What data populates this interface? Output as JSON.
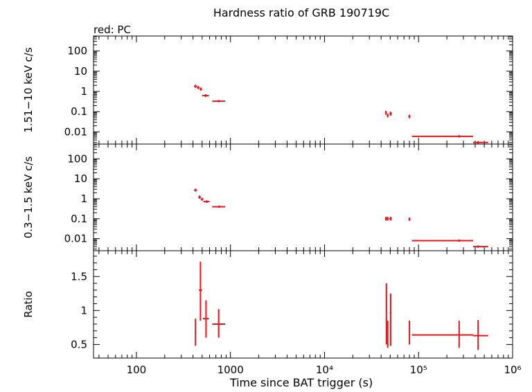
{
  "chart_data": {
    "type": "scatter",
    "title": "Hardness ratio of GRB 190719C",
    "subtitle": "red: PC",
    "xlabel": "Time since BAT trigger (s)",
    "x_scale": "log",
    "xlim": [
      35,
      1000000
    ],
    "x_ticks": [
      {
        "value": 100,
        "label": "100"
      },
      {
        "value": 1000,
        "label": "1000"
      },
      {
        "value": 10000,
        "label": "10⁴"
      },
      {
        "value": 100000,
        "label": "10⁵"
      },
      {
        "value": 1000000,
        "label": "10⁶"
      }
    ],
    "series_color": "#e8141b",
    "panels": [
      {
        "id": "hard",
        "ylabel": "1.51−10 keV c/s",
        "y_scale": "log",
        "ylim": [
          0.0025,
          550
        ],
        "y_ticks": [
          {
            "value": 100,
            "label": "100"
          },
          {
            "value": 10,
            "label": "10"
          },
          {
            "value": 1,
            "label": "1"
          },
          {
            "value": 0.1,
            "label": "0.1"
          },
          {
            "value": 0.01,
            "label": "0.01"
          }
        ],
        "points": [
          {
            "x": 425,
            "xlo": 410,
            "xhi": 440,
            "y": 1.8,
            "ylo": 1.5,
            "yhi": 2.15
          },
          {
            "x": 455,
            "xlo": 440,
            "xhi": 470,
            "y": 1.55,
            "ylo": 1.3,
            "yhi": 1.85
          },
          {
            "x": 485,
            "xlo": 470,
            "xhi": 500,
            "y": 1.3,
            "ylo": 1.1,
            "yhi": 1.55
          },
          {
            "x": 545,
            "xlo": 500,
            "xhi": 590,
            "y": 0.62,
            "ylo": 0.53,
            "yhi": 0.73
          },
          {
            "x": 750,
            "xlo": 640,
            "xhi": 880,
            "y": 0.33,
            "ylo": 0.29,
            "yhi": 0.38
          },
          {
            "x": 45000,
            "xlo": 44000,
            "xhi": 46000,
            "y": 0.09,
            "ylo": 0.07,
            "yhi": 0.11
          },
          {
            "x": 47000,
            "xlo": 46000,
            "xhi": 48000,
            "y": 0.065,
            "ylo": 0.052,
            "yhi": 0.08
          },
          {
            "x": 50500,
            "xlo": 49000,
            "xhi": 52000,
            "y": 0.08,
            "ylo": 0.063,
            "yhi": 0.1
          },
          {
            "x": 80000,
            "xlo": 78000,
            "xhi": 82000,
            "y": 0.058,
            "ylo": 0.047,
            "yhi": 0.071
          },
          {
            "x": 270000,
            "xlo": 85000,
            "xhi": 380000,
            "y": 0.006,
            "ylo": 0.0052,
            "yhi": 0.0069
          },
          {
            "x": 430000,
            "xlo": 380000,
            "xhi": 550000,
            "y": 0.003,
            "ylo": 0.0026,
            "yhi": 0.0035
          }
        ]
      },
      {
        "id": "soft",
        "ylabel": "0.3−1.5 keV c/s",
        "y_scale": "log",
        "ylim": [
          0.0025,
          550
        ],
        "y_ticks": [
          {
            "value": 100,
            "label": "100"
          },
          {
            "value": 10,
            "label": "10"
          },
          {
            "value": 1,
            "label": "1"
          },
          {
            "value": 0.1,
            "label": "0.1"
          },
          {
            "value": 0.01,
            "label": "0.01"
          }
        ],
        "points": [
          {
            "x": 425,
            "xlo": 410,
            "xhi": 440,
            "y": 2.7,
            "ylo": 2.3,
            "yhi": 3.2
          },
          {
            "x": 470,
            "xlo": 455,
            "xhi": 485,
            "y": 1.2,
            "ylo": 1.0,
            "yhi": 1.45
          },
          {
            "x": 500,
            "xlo": 485,
            "xhi": 515,
            "y": 0.95,
            "ylo": 0.8,
            "yhi": 1.12
          },
          {
            "x": 560,
            "xlo": 515,
            "xhi": 600,
            "y": 0.72,
            "ylo": 0.62,
            "yhi": 0.84
          },
          {
            "x": 760,
            "xlo": 640,
            "xhi": 880,
            "y": 0.4,
            "ylo": 0.35,
            "yhi": 0.46
          },
          {
            "x": 45000,
            "xlo": 44000,
            "xhi": 46000,
            "y": 0.1,
            "ylo": 0.08,
            "yhi": 0.125
          },
          {
            "x": 47000,
            "xlo": 46000,
            "xhi": 48000,
            "y": 0.1,
            "ylo": 0.08,
            "yhi": 0.125
          },
          {
            "x": 50500,
            "xlo": 49000,
            "xhi": 52000,
            "y": 0.1,
            "ylo": 0.08,
            "yhi": 0.125
          },
          {
            "x": 80000,
            "xlo": 78000,
            "xhi": 82000,
            "y": 0.095,
            "ylo": 0.078,
            "yhi": 0.115
          },
          {
            "x": 270000,
            "xlo": 85000,
            "xhi": 380000,
            "y": 0.008,
            "ylo": 0.007,
            "yhi": 0.0092
          },
          {
            "x": 430000,
            "xlo": 380000,
            "xhi": 550000,
            "y": 0.004,
            "ylo": 0.0035,
            "yhi": 0.0046
          }
        ]
      },
      {
        "id": "ratio",
        "ylabel": "Ratio",
        "y_scale": "linear",
        "ylim": [
          0.3,
          1.88
        ],
        "y_ticks": [
          {
            "value": 1.5,
            "label": "1.5"
          },
          {
            "value": 1,
            "label": "1"
          },
          {
            "value": 0.5,
            "label": "0.5"
          }
        ],
        "points": [
          {
            "x": 425,
            "xlo": 418,
            "xhi": 432,
            "y": 0.67,
            "ylo": 0.48,
            "yhi": 0.88
          },
          {
            "x": 480,
            "xlo": 462,
            "xhi": 500,
            "y": 1.3,
            "ylo": 0.85,
            "yhi": 1.72
          },
          {
            "x": 550,
            "xlo": 510,
            "xhi": 590,
            "y": 0.88,
            "ylo": 0.6,
            "yhi": 1.15
          },
          {
            "x": 750,
            "xlo": 640,
            "xhi": 880,
            "y": 0.8,
            "ylo": 0.6,
            "yhi": 1.02
          },
          {
            "x": 45500,
            "xlo": 45000,
            "xhi": 46000,
            "y": 0.8,
            "ylo": 0.5,
            "yhi": 1.4
          },
          {
            "x": 47000,
            "xlo": 46500,
            "xhi": 47500,
            "y": 0.62,
            "ylo": 0.45,
            "yhi": 0.85
          },
          {
            "x": 50500,
            "xlo": 49500,
            "xhi": 51500,
            "y": 0.97,
            "ylo": 0.48,
            "yhi": 1.25
          },
          {
            "x": 80000,
            "xlo": 79000,
            "xhi": 81000,
            "y": 0.64,
            "ylo": 0.5,
            "yhi": 0.85
          },
          {
            "x": 270000,
            "xlo": 85000,
            "xhi": 380000,
            "y": 0.64,
            "ylo": 0.45,
            "yhi": 0.85
          },
          {
            "x": 430000,
            "xlo": 380000,
            "xhi": 550000,
            "y": 0.63,
            "ylo": 0.42,
            "yhi": 0.86
          }
        ]
      }
    ]
  }
}
